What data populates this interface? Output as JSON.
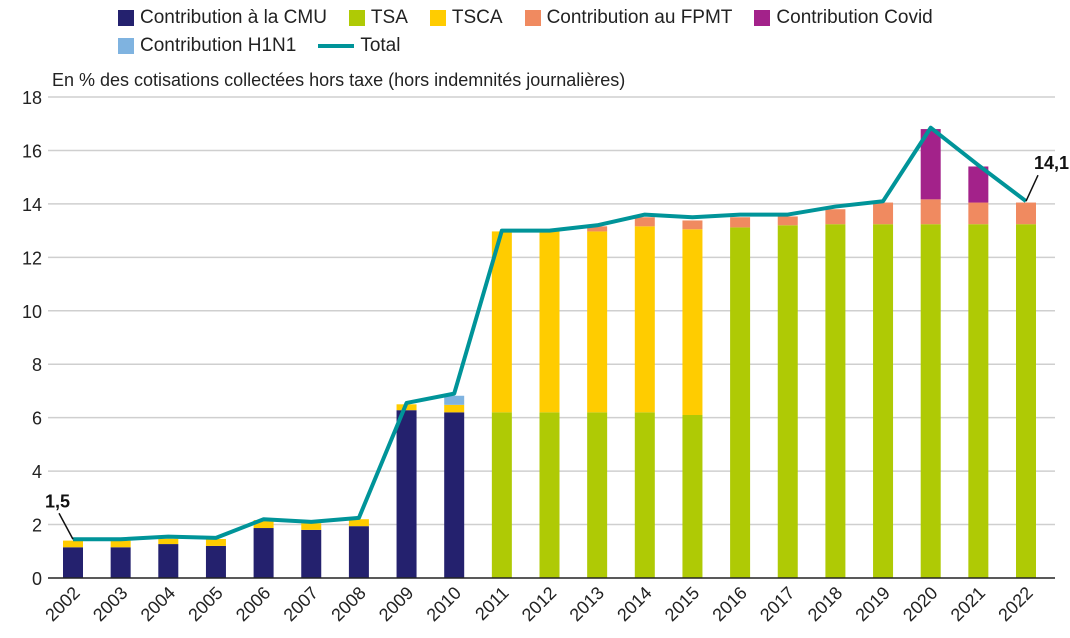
{
  "chart_data": {
    "type": "bar",
    "subtitle": "En % des cotisations collectées hors taxe (hors indemnités journalières)",
    "categories": [
      "2002",
      "2003",
      "2004",
      "2005",
      "2006",
      "2007",
      "2008",
      "2009",
      "2010",
      "2011",
      "2012",
      "2013",
      "2014",
      "2015",
      "2016",
      "2017",
      "2018",
      "2019",
      "2020",
      "2021",
      "2022"
    ],
    "ylim": [
      0,
      18
    ],
    "yticks": [
      "0",
      "2",
      "4",
      "6",
      "8",
      "10",
      "12",
      "14",
      "16",
      "18"
    ],
    "grid": true,
    "legend_position": "top",
    "stacked": true,
    "series": [
      {
        "name": "Contribution à la CMU",
        "color": "#24216e",
        "values": [
          1.15,
          1.15,
          1.27,
          1.2,
          1.87,
          1.8,
          1.94,
          6.28,
          6.2,
          0,
          0,
          0,
          0,
          0,
          0,
          0,
          0,
          0,
          0,
          0,
          0
        ]
      },
      {
        "name": "TSA",
        "color": "#afca05",
        "values": [
          0,
          0,
          0,
          0,
          0,
          0,
          0,
          0,
          0,
          6.2,
          6.2,
          6.2,
          6.2,
          6.1,
          13.12,
          13.2,
          13.24,
          13.24,
          13.24,
          13.24,
          13.24
        ]
      },
      {
        "name": "TSCA",
        "color": "#ffcc00",
        "values": [
          0.25,
          0.25,
          0.2,
          0.26,
          0.3,
          0.25,
          0.26,
          0.22,
          0.28,
          6.77,
          6.77,
          6.77,
          6.96,
          6.95,
          0,
          0,
          0,
          0,
          0,
          0,
          0
        ]
      },
      {
        "name": "Contribution au FPMT",
        "color": "#f08a60",
        "values": [
          0,
          0,
          0,
          0,
          0,
          0,
          0,
          0,
          0,
          0,
          0,
          0.19,
          0.34,
          0.33,
          0.38,
          0.33,
          0.56,
          0.81,
          0.93,
          0.81,
          0.81
        ]
      },
      {
        "name": "Contribution Covid",
        "color": "#a3228a",
        "values": [
          0,
          0,
          0,
          0,
          0,
          0,
          0,
          0,
          0,
          0,
          0,
          0,
          0,
          0,
          0,
          0,
          0,
          0,
          2.63,
          1.35,
          0
        ]
      },
      {
        "name": "Contribution H1N1",
        "color": "#7fb3e0",
        "values": [
          0,
          0,
          0,
          0,
          0,
          0,
          0,
          0,
          0.34,
          0,
          0,
          0,
          0,
          0,
          0,
          0,
          0,
          0,
          0,
          0,
          0
        ]
      }
    ],
    "line": {
      "name": "Total",
      "color": "#009499",
      "values": [
        1.45,
        1.45,
        1.55,
        1.5,
        2.2,
        2.1,
        2.25,
        6.55,
        6.9,
        13.0,
        13.0,
        13.2,
        13.6,
        13.5,
        13.6,
        13.6,
        13.9,
        14.1,
        16.85,
        15.45,
        14.1
      ]
    },
    "annotations": [
      {
        "category": "2002",
        "text": "1,5"
      },
      {
        "category": "2022",
        "text": "14,1"
      }
    ]
  }
}
